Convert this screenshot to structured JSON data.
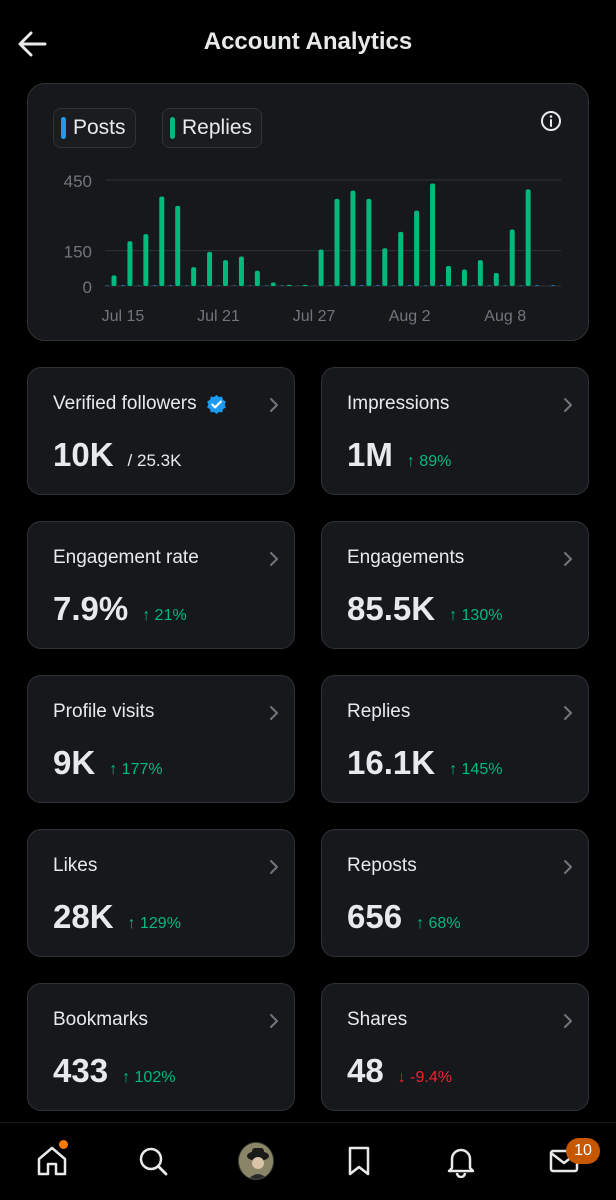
{
  "header": {
    "title": "Account Analytics"
  },
  "chart": {
    "legend": [
      {
        "label": "Posts",
        "color": "#1d9bf0"
      },
      {
        "label": "Replies",
        "color": "#00ba7c"
      }
    ]
  },
  "chart_data": {
    "type": "bar",
    "title": "",
    "xlabel": "",
    "ylabel": "",
    "ylim": [
      0,
      450
    ],
    "y_ticks": [
      "450",
      "150",
      "0"
    ],
    "x_tick_labels": [
      "Jul 15",
      "Jul 21",
      "Jul 27",
      "Aug 2",
      "Aug 8"
    ],
    "categories": [
      "Jul 14",
      "Jul 15",
      "Jul 16",
      "Jul 17",
      "Jul 18",
      "Jul 19",
      "Jul 20",
      "Jul 21",
      "Jul 22",
      "Jul 23",
      "Jul 24",
      "Jul 25",
      "Jul 26",
      "Jul 27",
      "Jul 28",
      "Jul 29",
      "Jul 30",
      "Jul 31",
      "Aug 1",
      "Aug 2",
      "Aug 3",
      "Aug 4",
      "Aug 5",
      "Aug 6",
      "Aug 7",
      "Aug 8",
      "Aug 9",
      "Aug 10",
      "Aug 11"
    ],
    "series": [
      {
        "name": "Posts",
        "color": "#1d9bf0",
        "values": [
          2,
          3,
          2,
          3,
          3,
          2,
          2,
          2,
          2,
          2,
          2,
          2,
          1,
          1,
          2,
          3,
          3,
          3,
          2,
          3,
          2,
          3,
          2,
          2,
          2,
          2,
          2,
          3,
          3
        ]
      },
      {
        "name": "Replies",
        "color": "#00ba7c",
        "values": [
          45,
          190,
          220,
          380,
          340,
          80,
          145,
          110,
          125,
          65,
          15,
          5,
          5,
          155,
          370,
          405,
          370,
          160,
          230,
          320,
          435,
          85,
          70,
          110,
          55,
          240,
          410,
          0,
          0
        ]
      }
    ],
    "grid": true,
    "legend_position": "top-left"
  },
  "stats": [
    {
      "label": "Verified followers",
      "value": "10K",
      "sub": "/ 25.3K",
      "verified": true
    },
    {
      "label": "Impressions",
      "value": "1M",
      "change": "89%",
      "direction": "up"
    },
    {
      "label": "Engagement rate",
      "value": "7.9%",
      "change": "21%",
      "direction": "up"
    },
    {
      "label": "Engagements",
      "value": "85.5K",
      "change": "130%",
      "direction": "up"
    },
    {
      "label": "Profile visits",
      "value": "9K",
      "change": "177%",
      "direction": "up"
    },
    {
      "label": "Replies",
      "value": "16.1K",
      "change": "145%",
      "direction": "up"
    },
    {
      "label": "Likes",
      "value": "28K",
      "change": "129%",
      "direction": "up"
    },
    {
      "label": "Reposts",
      "value": "656",
      "change": "68%",
      "direction": "up"
    },
    {
      "label": "Bookmarks",
      "value": "433",
      "change": "102%",
      "direction": "up"
    },
    {
      "label": "Shares",
      "value": "48",
      "change": "-9.4%",
      "direction": "down"
    }
  ],
  "nav": {
    "icons": [
      "home-icon",
      "search-icon",
      "profile-avatar",
      "bookmark-icon",
      "bell-icon",
      "mail-icon"
    ],
    "messages_badge": "10"
  },
  "colors": {
    "up": "#00ba7c",
    "down": "#f4212e",
    "posts": "#1d9bf0",
    "replies": "#00ba7c",
    "notification_dot": "#ff7a00"
  }
}
